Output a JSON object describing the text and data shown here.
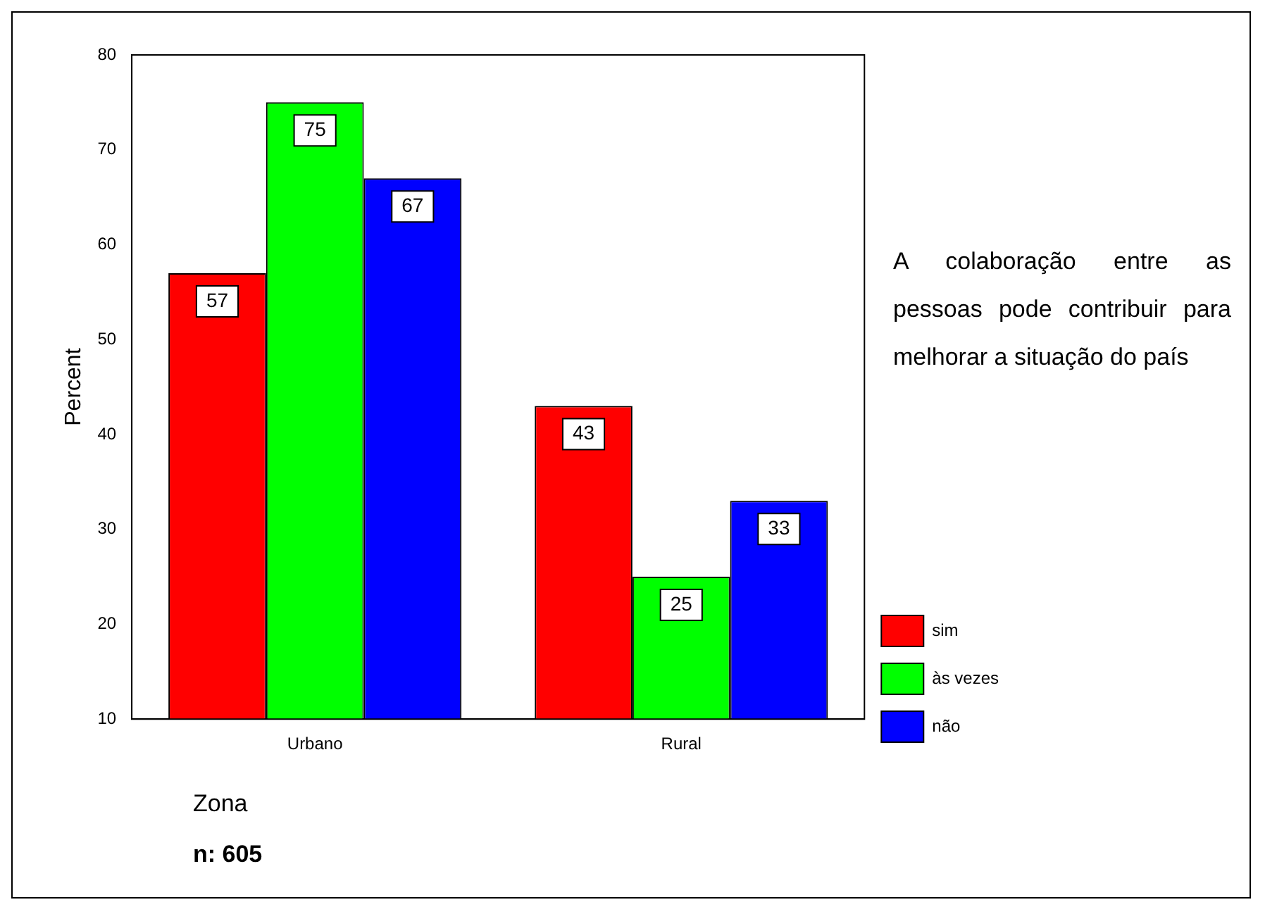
{
  "chart_data": {
    "type": "bar",
    "categories": [
      "Urbano",
      "Rural"
    ],
    "series": [
      {
        "name": "sim",
        "color": "#ff0000",
        "values": [
          57,
          43
        ]
      },
      {
        "name": "às vezes",
        "color": "#00ff00",
        "values": [
          75,
          25
        ]
      },
      {
        "name": "não",
        "color": "#0000ff",
        "values": [
          67,
          33
        ]
      }
    ],
    "ylim": [
      10,
      80
    ],
    "yticks": [
      10,
      20,
      30,
      40,
      50,
      60,
      70,
      80
    ],
    "ylabel": "Percent",
    "xlabel": "Zona",
    "legend_title": "A colaboração entre as pessoas pode contribuir para melhorar a situação do país",
    "legend": "right",
    "grid": false,
    "data_labels": true,
    "annotations": [
      "n: 605"
    ]
  }
}
